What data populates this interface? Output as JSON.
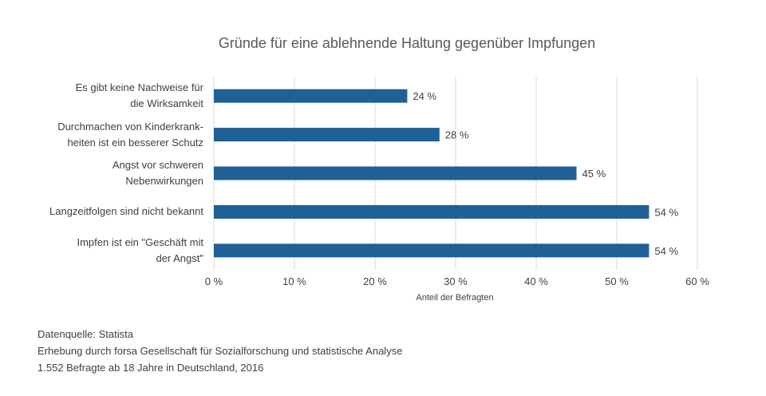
{
  "chart_data": {
    "type": "bar",
    "orientation": "horizontal",
    "title": "Gründe für eine ablehnende Haltung gegenüber Impfungen",
    "categories": [
      "Es gibt keine Nachweise für\ndie Wirksamkeit",
      "Durchmachen von Kinderkrank-\nheiten ist ein besserer Schutz",
      "Angst vor schweren\nNebenwirkungen",
      "Langzeitfolgen sind nicht bekannt",
      "Impfen ist ein \"Geschäft mit\nder Angst\""
    ],
    "values": [
      24,
      28,
      45,
      54,
      54
    ],
    "data_labels": [
      "24 %",
      "28 %",
      "45 %",
      "54 %",
      "54 %"
    ],
    "xlabel": "Anteil der Befragten",
    "ylabel": "",
    "xlim": [
      0,
      60
    ],
    "x_ticks": [
      0,
      10,
      20,
      30,
      40,
      50,
      60
    ],
    "x_tick_labels": [
      "0 %",
      "10 %",
      "20 %",
      "30 %",
      "40 %",
      "50 %",
      "60 %"
    ],
    "grid": "vertical",
    "legend": "none",
    "bar_color": "#1F6096"
  },
  "source": {
    "lines": [
      "Datenquelle: Statista",
      "Erhebung durch forsa Gesellschaft für Sozialforschung und statistische Analyse",
      "1.552 Befragte ab 18 Jahre in Deutschland, 2016"
    ]
  }
}
